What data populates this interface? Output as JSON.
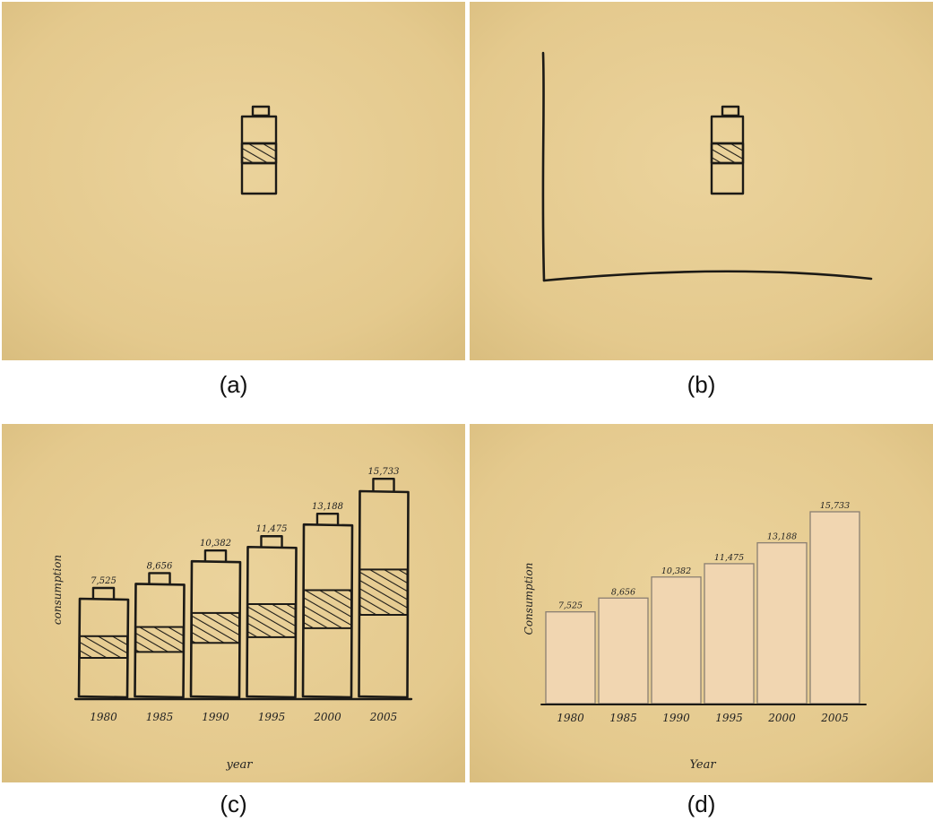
{
  "captions": {
    "a": "(a)",
    "b": "(b)",
    "c": "(c)",
    "d": "(d)"
  },
  "colors": {
    "paper": "#e8cf98",
    "paper_dark": "#dcc07f",
    "ink": "#1c1a16",
    "bar_fill": "#f1d6b1",
    "bar_stroke": "#8b7f72"
  },
  "chart_data": [
    {
      "panel": "a",
      "type": "other",
      "description_icon": "battery-icon"
    },
    {
      "panel": "b",
      "type": "other",
      "axes": true,
      "description_icon": "battery-icon"
    },
    {
      "panel": "c",
      "type": "bar",
      "style": "sketch",
      "categories": [
        "1980",
        "1985",
        "1990",
        "1995",
        "2000",
        "2005"
      ],
      "values": [
        7525,
        8656,
        10382,
        11475,
        13188,
        15733
      ],
      "value_labels": [
        "7,525",
        "8,656",
        "10,382",
        "11,475",
        "13,188",
        "15,733"
      ],
      "xlabel": "year",
      "ylabel": "consumption",
      "ylim": [
        0,
        15733
      ]
    },
    {
      "panel": "d",
      "type": "bar",
      "categories": [
        "1980",
        "1985",
        "1990",
        "1995",
        "2000",
        "2005"
      ],
      "values": [
        7525,
        8656,
        10382,
        11475,
        13188,
        15733
      ],
      "value_labels": [
        "7,525",
        "8,656",
        "10,382",
        "11,475",
        "13,188",
        "15,733"
      ],
      "xlabel": "Year",
      "ylabel": "Consumption",
      "ylim": [
        0,
        15733
      ]
    }
  ]
}
